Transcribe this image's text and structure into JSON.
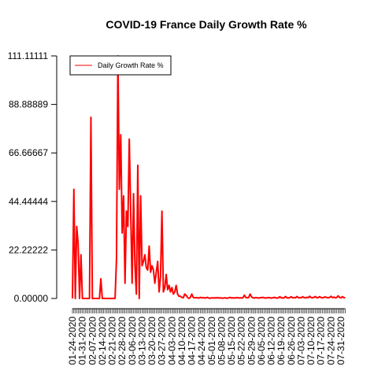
{
  "chart_data": {
    "type": "line",
    "title": "COVID-19 France Daily Growth Rate %",
    "legend": "topleft",
    "categories": [
      "01-24-2020",
      null,
      null,
      null,
      null,
      null,
      null,
      "01-31-2020",
      null,
      null,
      null,
      null,
      null,
      null,
      "02-07-2020",
      null,
      null,
      null,
      null,
      null,
      null,
      "02-14-2020",
      null,
      null,
      null,
      null,
      null,
      null,
      "02-21-2020",
      null,
      null,
      null,
      null,
      null,
      null,
      "02-28-2020",
      null,
      null,
      null,
      null,
      null,
      null,
      "03-06-2020",
      null,
      null,
      null,
      null,
      null,
      null,
      "03-13-2020",
      null,
      null,
      null,
      null,
      null,
      null,
      "03-20-2020",
      null,
      null,
      null,
      null,
      null,
      null,
      "03-27-2020",
      null,
      null,
      null,
      null,
      null,
      null,
      "04-03-2020",
      null,
      null,
      null,
      null,
      null,
      null,
      "04-10-2020",
      null,
      null,
      null,
      null,
      null,
      null,
      "04-17-2020",
      null,
      null,
      null,
      null,
      null,
      null,
      "04-24-2020",
      null,
      null,
      null,
      null,
      null,
      null,
      "05-01-2020",
      null,
      null,
      null,
      null,
      null,
      null,
      "05-08-2020",
      null,
      null,
      null,
      null,
      null,
      null,
      "05-15-2020",
      null,
      null,
      null,
      null,
      null,
      null,
      "05-22-2020",
      null,
      null,
      null,
      null,
      null,
      null,
      "05-29-2020",
      null,
      null,
      null,
      null,
      null,
      null,
      "06-05-2020",
      null,
      null,
      null,
      null,
      null,
      null,
      "06-12-2020",
      null,
      null,
      null,
      null,
      null,
      null,
      "06-19-2020",
      null,
      null,
      null,
      null,
      null,
      null,
      "06-26-2020",
      null,
      null,
      null,
      null,
      null,
      null,
      "07-03-2020",
      null,
      null,
      null,
      null,
      null,
      null,
      "07-10-2020",
      null,
      null,
      null,
      null,
      null,
      null,
      "07-17-2020",
      null,
      null,
      null,
      null,
      null,
      null,
      "07-24-2020",
      null,
      null,
      null,
      null,
      null,
      null,
      "07-31-2020",
      null,
      null,
      null
    ],
    "series": [
      {
        "name": "Daily Growth Rate %",
        "color": "#ff0000",
        "values": [
          0,
          50,
          0,
          33,
          25,
          0,
          20,
          0,
          0,
          0,
          0,
          0,
          0,
          83,
          0,
          0,
          0,
          0,
          0,
          0,
          9,
          0,
          0,
          0,
          0,
          0,
          0,
          0,
          0,
          0,
          0,
          18,
          111.11,
          50,
          75,
          30,
          47,
          7,
          40,
          33,
          73,
          40,
          7,
          48,
          15,
          2,
          61,
          0,
          47,
          15,
          17,
          20,
          14,
          13,
          24,
          12,
          15,
          13,
          7,
          12,
          17,
          3,
          10,
          40,
          3,
          5,
          11,
          4,
          6,
          3,
          5,
          2,
          3,
          6,
          2,
          1,
          1,
          0.5,
          0.3,
          2,
          1.5,
          0.5,
          0,
          0.5,
          2,
          0.5,
          0.3,
          0.4,
          0.3,
          0.2,
          0.5,
          0.3,
          0.4,
          0.2,
          0.3,
          0.5,
          0.2,
          0.1,
          0.3,
          0.2,
          0.3,
          0.2,
          0.4,
          0.2,
          0.3,
          0.2,
          0.1,
          0.3,
          0.2,
          0.1,
          0.3,
          0.5,
          0.2,
          0.3,
          0.2,
          0.3,
          0.4,
          0.2,
          0.3,
          0.2,
          0.3,
          1.5,
          0.5,
          0.3,
          0.4,
          2,
          0.8,
          0.3,
          0.2,
          0.4,
          0.3,
          0.2,
          0.3,
          0.4,
          0.5,
          0.3,
          0.2,
          0.3,
          0.4,
          0.3,
          0.2,
          0.3,
          0.5,
          0.3,
          0.2,
          0.3,
          0.8,
          0.3,
          0.2,
          0.3,
          0.9,
          0.3,
          0.2,
          0.4,
          0.8,
          0.3,
          0.4,
          0.3,
          0.9,
          0.3,
          0.4,
          0.3,
          0.8,
          0.4,
          0.3,
          0.5,
          0.4,
          1,
          0.4,
          0.3,
          0.5,
          0.9,
          0.3,
          0.4,
          0.8,
          0.4,
          0.3,
          0.5,
          0.7,
          0.4,
          0.3,
          0.5,
          1,
          0.4,
          0.6,
          0.3,
          0.4,
          1.2,
          0.5,
          0.3,
          0.8,
          0.4,
          0.3
        ]
      }
    ],
    "ylim": [
      0,
      111.11111
    ],
    "yticks": [
      {
        "value": 0,
        "label": "0.00000"
      },
      22.22222,
      44.44444,
      66.66667,
      88.88889,
      111.11111
    ]
  }
}
